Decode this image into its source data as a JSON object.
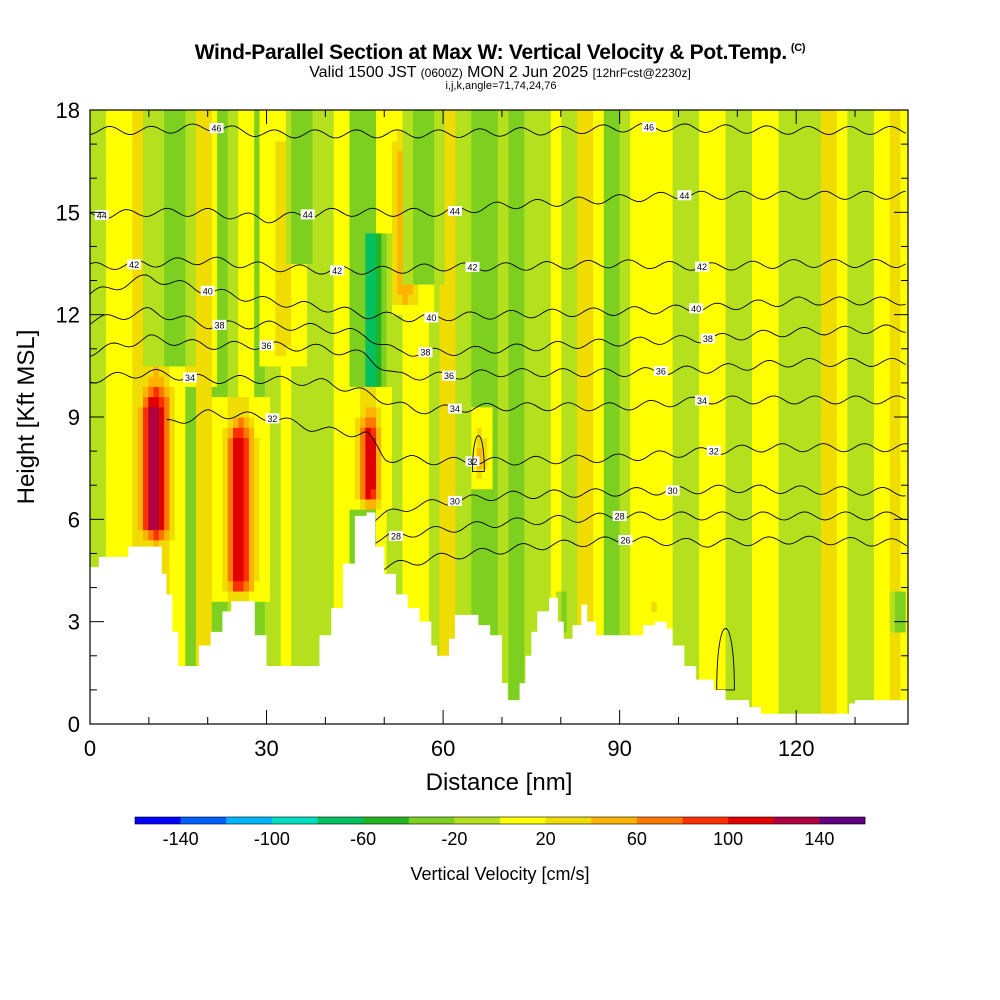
{
  "header": {
    "title": "Wind-Parallel Section at Max W: Vertical Velocity & Pot.Temp.",
    "copyright": "(C)",
    "valid_prefix": "Valid 1500 JST",
    "valid_utc": "(0600Z)",
    "valid_date": "MON 2 Jun 2025",
    "forecast_info": "[12hrFcst@2230z]",
    "grid_info": "i,j,k,angle=71,74,24,76"
  },
  "chart_data": {
    "type": "heatmap",
    "xlabel": "Distance [nm]",
    "ylabel": "Height [Kft MSL]",
    "xlim": [
      0,
      139
    ],
    "ylim": [
      0,
      18
    ],
    "x_ticks": [
      0,
      30,
      60,
      90,
      120
    ],
    "x_tick_labels": [
      "0",
      "30",
      "60",
      "90",
      "120"
    ],
    "y_ticks": [
      0,
      3,
      6,
      9,
      12,
      15,
      18
    ],
    "y_tick_labels": [
      "0",
      "3",
      "6",
      "9",
      "12",
      "15",
      "18"
    ],
    "background_field": "vertical velocity, mostly weak (-20 to 20 cm/s)",
    "terrain": [
      [
        0,
        4.6
      ],
      [
        1.5,
        4.9
      ],
      [
        6.5,
        5.2
      ],
      [
        11.5,
        5.2
      ],
      [
        12.2,
        4.4
      ],
      [
        13,
        3.8
      ],
      [
        14,
        2.7
      ],
      [
        15,
        1.7
      ],
      [
        17,
        1.7
      ],
      [
        18.5,
        2.3
      ],
      [
        20.5,
        2.7
      ],
      [
        22.5,
        3.3
      ],
      [
        24,
        3.6
      ],
      [
        26,
        3.6
      ],
      [
        28,
        2.6
      ],
      [
        30,
        1.7
      ],
      [
        36,
        1.7
      ],
      [
        39,
        2.6
      ],
      [
        41,
        3.4
      ],
      [
        43,
        4.7
      ],
      [
        45,
        6.1
      ],
      [
        47,
        6.2
      ],
      [
        48.5,
        5.2
      ],
      [
        50,
        4.4
      ],
      [
        52,
        3.8
      ],
      [
        54,
        3.4
      ],
      [
        56,
        3.0
      ],
      [
        58,
        2.3
      ],
      [
        59,
        2.0
      ],
      [
        60,
        2.0
      ],
      [
        61,
        2.5
      ],
      [
        62,
        3.2
      ],
      [
        64,
        3.2
      ],
      [
        66,
        2.9
      ],
      [
        68,
        2.6
      ],
      [
        70,
        1.2
      ],
      [
        71,
        0.7
      ],
      [
        72,
        0.7
      ],
      [
        73,
        1.2
      ],
      [
        74,
        2.0
      ],
      [
        75,
        2.7
      ],
      [
        76,
        3.3
      ],
      [
        78,
        3.7
      ],
      [
        79.5,
        3.0
      ],
      [
        80.5,
        2.5
      ],
      [
        82,
        2.9
      ],
      [
        83.5,
        3.5
      ],
      [
        84.5,
        3.0
      ],
      [
        86,
        2.6
      ],
      [
        89,
        2.6
      ],
      [
        91,
        2.6
      ],
      [
        92,
        2.6
      ],
      [
        94,
        2.9
      ],
      [
        96,
        3.0
      ],
      [
        98,
        2.8
      ],
      [
        99,
        2.3
      ],
      [
        101,
        1.7
      ],
      [
        103,
        1.3
      ],
      [
        106,
        1.0
      ],
      [
        108,
        0.7
      ],
      [
        110,
        0.7
      ],
      [
        112,
        0.5
      ],
      [
        114,
        0.3
      ],
      [
        120,
        0.3
      ],
      [
        121,
        0.3
      ],
      [
        128,
        0.3
      ],
      [
        129,
        0.6
      ],
      [
        130,
        0.7
      ],
      [
        139,
        0.7
      ]
    ],
    "updrafts": [
      {
        "x": 11.2,
        "bottom": 5.2,
        "top": 10.6,
        "max": 140,
        "width": 3.2
      },
      {
        "x": 25.5,
        "bottom": 3.6,
        "top": 9.6,
        "max": 120,
        "width": 3.0
      },
      {
        "x": 47.5,
        "bottom": 6.2,
        "top": 9.8,
        "max": 120,
        "width": 2.4
      },
      {
        "x": 17.2,
        "bottom": 10.0,
        "top": 18,
        "max": 50,
        "width": 3.0
      },
      {
        "x": 32.5,
        "bottom": 10.5,
        "top": 18,
        "max": 35,
        "width": 2.5
      },
      {
        "x": 53.5,
        "bottom": 12.0,
        "top": 18,
        "max": 60,
        "width": 3.0
      },
      {
        "x": 66.3,
        "bottom": 7.0,
        "top": 9.2,
        "max": 60,
        "width": 1.2
      },
      {
        "x": 95.5,
        "bottom": 3.0,
        "top": 4.2,
        "max": 60,
        "width": 1.0
      }
    ],
    "downdrafts": [
      {
        "x": 14.5,
        "bottom": 10.5,
        "top": 18,
        "min": -40,
        "width": 2.5
      },
      {
        "x": 36.0,
        "bottom": 13.5,
        "top": 18,
        "min": -40,
        "width": 2.0
      },
      {
        "x": 48.0,
        "bottom": 9.8,
        "top": 14.5,
        "min": -70,
        "width": 2.5
      },
      {
        "x": 57.0,
        "bottom": 13.0,
        "top": 18,
        "min": -40,
        "width": 2.5
      },
      {
        "x": 73.2,
        "bottom": 1.5,
        "top": 3.5,
        "min": -40,
        "width": 1.2
      },
      {
        "x": 80.5,
        "bottom": 2.6,
        "top": 3.8,
        "min": -40,
        "width": 1.0
      },
      {
        "x": 137.5,
        "bottom": 2.8,
        "top": 4.0,
        "min": -40,
        "width": 1.0
      }
    ],
    "theta_contours": [
      {
        "label": "26",
        "heights": [
          [
            50,
            4.6
          ],
          [
            60,
            4.9
          ],
          [
            75,
            5.2
          ],
          [
            90,
            5.4
          ],
          [
            105,
            5.3
          ],
          [
            120,
            5.4
          ],
          [
            139,
            5.3
          ]
        ],
        "labels_at": [
          91
        ]
      },
      {
        "label": "28",
        "heights": [
          [
            48,
            5.4
          ],
          [
            55,
            5.6
          ],
          [
            70,
            5.9
          ],
          [
            90,
            6.1
          ],
          [
            110,
            6.1
          ],
          [
            139,
            6.1
          ]
        ],
        "labels_at": [
          52,
          90
        ]
      },
      {
        "label": "30",
        "heights": [
          [
            48,
            6.0
          ],
          [
            55,
            6.4
          ],
          [
            70,
            6.7
          ],
          [
            90,
            6.8
          ],
          [
            110,
            6.9
          ],
          [
            139,
            6.8
          ]
        ],
        "labels_at": [
          62,
          99
        ]
      },
      {
        "label": "32",
        "heights": [
          [
            13,
            8.8
          ],
          [
            20,
            9.1
          ],
          [
            30,
            9.0
          ],
          [
            40,
            8.6
          ],
          [
            47,
            8.5
          ],
          [
            50,
            7.8
          ],
          [
            60,
            7.7
          ],
          [
            70,
            7.7
          ],
          [
            90,
            7.8
          ],
          [
            105,
            8.0
          ],
          [
            115,
            8.1
          ],
          [
            139,
            8.1
          ]
        ],
        "labels_at": [
          31,
          65,
          106
        ]
      },
      {
        "label": "34",
        "heights": [
          [
            0,
            10.1
          ],
          [
            10,
            10.3
          ],
          [
            20,
            10.1
          ],
          [
            30,
            10.1
          ],
          [
            40,
            10.0
          ],
          [
            45,
            9.8
          ],
          [
            50,
            9.5
          ],
          [
            55,
            9.2
          ],
          [
            70,
            9.3
          ],
          [
            90,
            9.3
          ],
          [
            105,
            9.5
          ],
          [
            120,
            9.5
          ],
          [
            139,
            9.5
          ]
        ],
        "labels_at": [
          17,
          62,
          104
        ]
      },
      {
        "label": "36",
        "heights": [
          [
            0,
            10.9
          ],
          [
            10,
            11.3
          ],
          [
            20,
            11.1
          ],
          [
            30,
            11.1
          ],
          [
            40,
            11.0
          ],
          [
            47,
            10.8
          ],
          [
            52,
            10.2
          ],
          [
            60,
            10.2
          ],
          [
            70,
            10.3
          ],
          [
            90,
            10.3
          ],
          [
            105,
            10.4
          ],
          [
            120,
            10.6
          ],
          [
            139,
            10.6
          ]
        ],
        "labels_at": [
          30,
          61,
          97
        ]
      },
      {
        "label": "38",
        "heights": [
          [
            0,
            11.8
          ],
          [
            10,
            12.1
          ],
          [
            20,
            11.7
          ],
          [
            30,
            11.7
          ],
          [
            40,
            11.6
          ],
          [
            47,
            11.4
          ],
          [
            52,
            10.9
          ],
          [
            60,
            10.9
          ],
          [
            70,
            11.0
          ],
          [
            90,
            11.2
          ],
          [
            105,
            11.3
          ],
          [
            120,
            11.5
          ],
          [
            139,
            11.6
          ]
        ],
        "labels_at": [
          22,
          57,
          105
        ]
      },
      {
        "label": "40",
        "heights": [
          [
            0,
            12.6
          ],
          [
            10,
            13.1
          ],
          [
            20,
            12.7
          ],
          [
            30,
            12.4
          ],
          [
            40,
            12.2
          ],
          [
            47,
            12.0
          ],
          [
            55,
            11.9
          ],
          [
            70,
            12.0
          ],
          [
            90,
            12.1
          ],
          [
            105,
            12.2
          ],
          [
            120,
            12.4
          ],
          [
            139,
            12.4
          ]
        ],
        "labels_at": [
          20,
          58,
          103
        ]
      },
      {
        "label": "42",
        "heights": [
          [
            0,
            13.4
          ],
          [
            10,
            13.5
          ],
          [
            20,
            13.6
          ],
          [
            30,
            13.4
          ],
          [
            40,
            13.3
          ],
          [
            50,
            13.3
          ],
          [
            60,
            13.4
          ],
          [
            70,
            13.4
          ],
          [
            90,
            13.5
          ],
          [
            105,
            13.4
          ],
          [
            120,
            13.5
          ],
          [
            139,
            13.5
          ]
        ],
        "labels_at": [
          7.5,
          42,
          65,
          104
        ]
      },
      {
        "label": "44",
        "heights": [
          [
            0,
            14.9
          ],
          [
            10,
            15.0
          ],
          [
            20,
            15.0
          ],
          [
            30,
            14.8
          ],
          [
            40,
            15.0
          ],
          [
            50,
            15.0
          ],
          [
            60,
            15.0
          ],
          [
            70,
            15.2
          ],
          [
            90,
            15.4
          ],
          [
            100,
            15.5
          ],
          [
            120,
            15.5
          ],
          [
            139,
            15.5
          ]
        ],
        "labels_at": [
          2,
          37,
          62,
          101
        ]
      },
      {
        "label": "46",
        "heights": [
          [
            0,
            17.4
          ],
          [
            10,
            17.4
          ],
          [
            20,
            17.5
          ],
          [
            30,
            17.3
          ],
          [
            40,
            17.3
          ],
          [
            60,
            17.3
          ],
          [
            80,
            17.4
          ],
          [
            95,
            17.5
          ],
          [
            120,
            17.4
          ],
          [
            139,
            17.4
          ]
        ],
        "labels_at": [
          21.5,
          95
        ]
      }
    ],
    "small_loops": [
      {
        "x": 108,
        "y_bottom": 1.0,
        "y_top": 3.4,
        "half_width": 1.5,
        "label": ""
      },
      {
        "x": 66,
        "y_bottom": 7.4,
        "y_top": 8.8,
        "half_width": 1.0,
        "label": ""
      }
    ],
    "colorbar": {
      "label": "Vertical Velocity [cm/s]",
      "levels": [
        -160,
        -140,
        -120,
        -100,
        -80,
        -60,
        -40,
        -20,
        0,
        20,
        40,
        60,
        80,
        100,
        120,
        140,
        160
      ],
      "tick_labels": [
        "-140",
        "-100",
        "-60",
        "-20",
        "20",
        "60",
        "100",
        "140"
      ],
      "tick_values": [
        -140,
        -100,
        -60,
        -20,
        20,
        60,
        100,
        140
      ],
      "colors": [
        "#0000ff",
        "#0060ff",
        "#00b4ff",
        "#00e0c0",
        "#00c060",
        "#22b422",
        "#7ed020",
        "#b4e01e",
        "#ffff00",
        "#f0dc00",
        "#ffb400",
        "#ff7800",
        "#ff3000",
        "#e00000",
        "#b00040",
        "#600080"
      ]
    }
  }
}
